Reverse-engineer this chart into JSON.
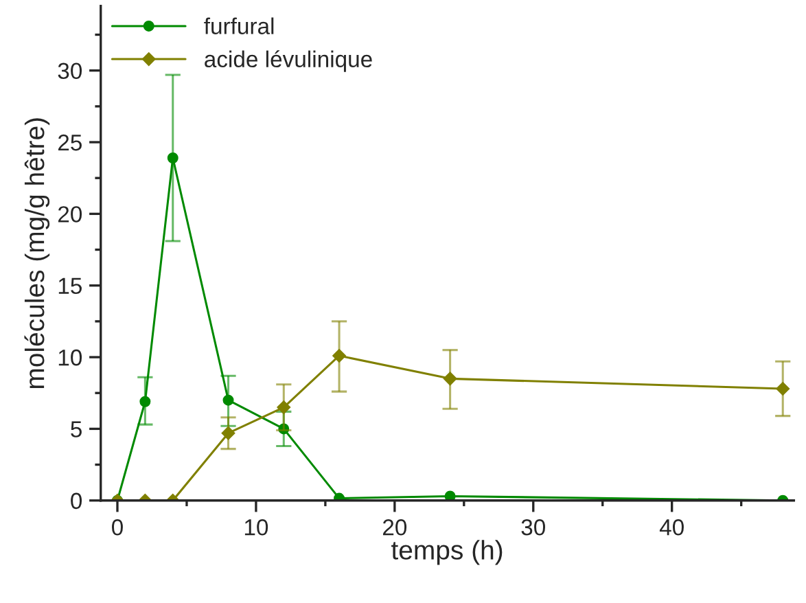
{
  "chart_data": {
    "type": "line",
    "xlabel": "temps (h)",
    "ylabel": "molécules (mg/g hêtre)",
    "xlim": [
      -1.2,
      48.8
    ],
    "xticks": [
      0,
      10,
      20,
      30,
      40
    ],
    "ylim": [
      0,
      34.5
    ],
    "yticks": [
      0,
      5,
      10,
      15,
      20,
      25,
      30
    ],
    "legend": "top left",
    "grid": false,
    "line_style": "solid",
    "series": [
      {
        "name": "furfural",
        "color": "#008a00",
        "marker": "circle",
        "x": [
          0,
          2,
          4,
          8,
          12,
          16,
          24,
          48
        ],
        "values": [
          0,
          6.9,
          23.9,
          7.0,
          5.0,
          0.15,
          0.3,
          0
        ],
        "errors": [
          null,
          [
            5.3,
            8.6
          ],
          [
            18.1,
            29.7
          ],
          [
            5.2,
            8.7
          ],
          [
            3.8,
            6.2
          ],
          null,
          null,
          null
        ]
      },
      {
        "name": "acide lévulinique",
        "color": "#808000",
        "marker": "diamond",
        "x": [
          0,
          2,
          4,
          8,
          12,
          16,
          24,
          48
        ],
        "values": [
          0,
          0,
          0,
          4.7,
          6.5,
          10.1,
          8.5,
          7.8
        ],
        "errors": [
          null,
          null,
          null,
          [
            3.6,
            5.8
          ],
          [
            4.9,
            8.1
          ],
          [
            7.6,
            12.5
          ],
          [
            6.4,
            10.5
          ],
          [
            5.9,
            9.7
          ]
        ]
      }
    ]
  }
}
